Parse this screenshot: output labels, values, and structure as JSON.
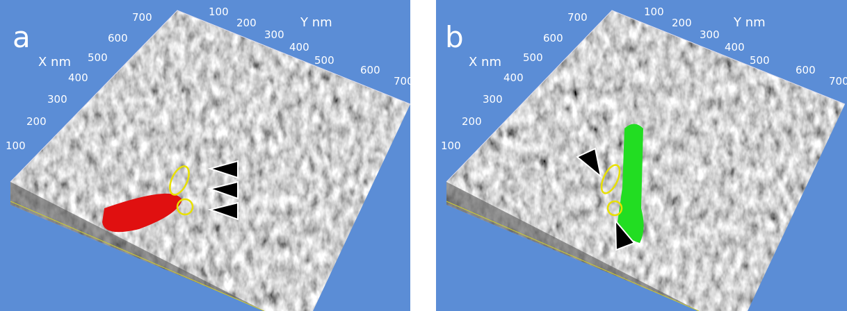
{
  "panels": [
    {
      "label": "a",
      "x_axis": {
        "label": "X nm",
        "ticks": [
          100,
          200,
          300,
          400,
          500,
          600,
          700
        ]
      },
      "y_axis": {
        "label": "Y nm",
        "ticks": [
          100,
          200,
          300,
          400,
          500,
          600,
          700
        ]
      }
    },
    {
      "label": "b",
      "x_axis": {
        "label": "X nm",
        "ticks": [
          100,
          200,
          300,
          400,
          500,
          600,
          700
        ]
      },
      "y_axis": {
        "label": "Y nm",
        "ticks": [
          100,
          200,
          300,
          400,
          500,
          600,
          700
        ]
      }
    }
  ]
}
